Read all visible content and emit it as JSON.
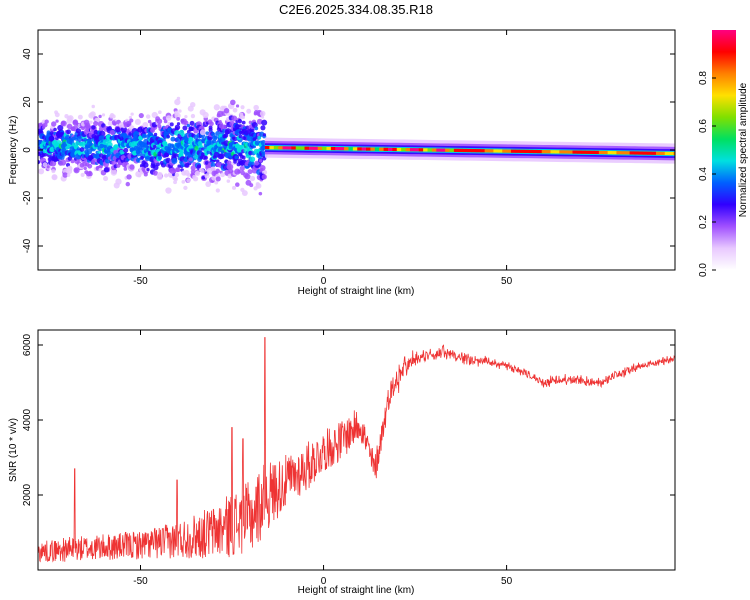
{
  "figure_title": "C2E6.2025.334.08.35.R18",
  "colors": {
    "snr_line": "#ee3333",
    "axes": "#000000",
    "background": "#ffffff"
  },
  "chart_data": [
    {
      "type": "heatmap",
      "title": "C2E6.2025.334.08.35.R18",
      "xlabel": "Height of straight line (km)",
      "ylabel": "Frequency (Hz)",
      "xlim": [
        -78,
        96
      ],
      "ylim": [
        -50,
        50
      ],
      "xticks": [
        -50,
        0,
        50
      ],
      "yticks": [
        -40,
        -20,
        0,
        20,
        40
      ],
      "colorbar": {
        "label": "Normalized spectral amplitude",
        "range": [
          0.0,
          1.0
        ],
        "ticks": [
          0.0,
          0.2,
          0.4,
          0.6,
          0.8
        ],
        "colors": [
          "#ffffff",
          "#e8c8ff",
          "#a050ff",
          "#3000ff",
          "#0060ff",
          "#00e0e0",
          "#00e060",
          "#80e000",
          "#ffe000",
          "#ff8000",
          "#ff0000",
          "#ff0080"
        ]
      },
      "features": {
        "noisy_region": {
          "x_range": [
            -78,
            -16
          ],
          "freq_center": 1.5,
          "freq_spread": 6,
          "envelope_max_hz": 20
        },
        "tonal_line": {
          "x_range": [
            -16,
            96
          ],
          "freq_start": 1.0,
          "freq_end": -1.5,
          "peak_amplitude": 1.0
        }
      }
    },
    {
      "type": "line",
      "xlabel": "Height of straight line (km)",
      "ylabel": "SNR (10 * v/v)",
      "xlim": [
        -78,
        96
      ],
      "ylim": [
        0,
        6400
      ],
      "xticks": [
        -50,
        0,
        50
      ],
      "yticks": [
        2000,
        4000,
        6000
      ],
      "series": [
        {
          "name": "SNR",
          "x": [
            -78,
            -70,
            -60,
            -50,
            -40,
            -30,
            -25,
            -20,
            -16,
            -12,
            -8,
            -4,
            0,
            5,
            10,
            14,
            18,
            22,
            26,
            30,
            35,
            40,
            45,
            50,
            55,
            60,
            65,
            70,
            75,
            80,
            85,
            90,
            96
          ],
          "y": [
            400,
            450,
            500,
            550,
            650,
            800,
            950,
            1100,
            1600,
            2000,
            2300,
            2600,
            3000,
            3300,
            3800,
            2500,
            4600,
            5400,
            5650,
            5800,
            5750,
            5600,
            5550,
            5450,
            5250,
            5000,
            5050,
            5050,
            5000,
            5200,
            5400,
            5500,
            5650
          ],
          "noise": [
            250,
            300,
            320,
            350,
            450,
            650,
            800,
            900,
            900,
            700,
            600,
            600,
            500,
            500,
            400,
            400,
            300,
            220,
            200,
            180,
            130,
            110,
            100,
            90,
            90,
            90,
            90,
            90,
            90,
            90,
            90,
            80,
            80
          ],
          "spikes": [
            [
              -16,
              6200
            ],
            [
              -25,
              3800
            ],
            [
              -68,
              2700
            ],
            [
              -40,
              2400
            ],
            [
              -22,
              3500
            ]
          ]
        }
      ]
    }
  ]
}
